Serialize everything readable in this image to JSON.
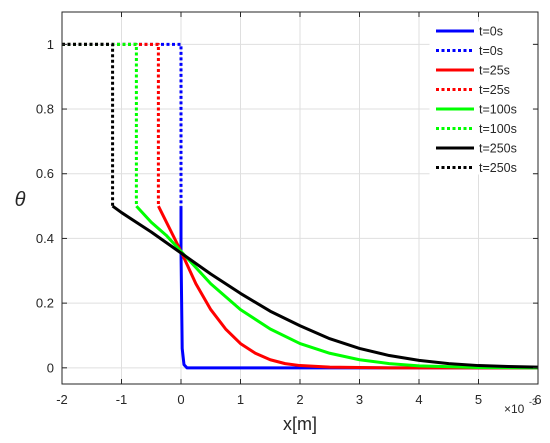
{
  "chart_data": {
    "type": "line",
    "xlabel": "x[m]",
    "ylabel": "θ",
    "x_exponent_label": "×10",
    "x_exponent_power": "-3",
    "xlim": [
      -2,
      6
    ],
    "ylim": [
      -0.05,
      1.1
    ],
    "x_unit_scale": 0.001,
    "xticks": [
      -2,
      -1,
      0,
      1,
      2,
      3,
      4,
      5,
      6
    ],
    "yticks": [
      0,
      0.2,
      0.4,
      0.6,
      0.8,
      1
    ],
    "grid": true,
    "legend_position": "top-right",
    "series": [
      {
        "name": "t=0s",
        "color": "#0000ff",
        "style": "solid",
        "x": [
          0,
          0,
          0.02,
          0.05,
          0.1,
          1,
          2,
          3,
          4,
          5,
          6
        ],
        "y": [
          0.5,
          0.36,
          0.06,
          0.01,
          0,
          0,
          0,
          0,
          0,
          0,
          0
        ]
      },
      {
        "name": "t=0s",
        "color": "#0000ff",
        "style": "dotted",
        "x": [
          -2,
          0,
          0
        ],
        "y": [
          1,
          1,
          0.5
        ]
      },
      {
        "name": "t=25s",
        "color": "#ff0000",
        "style": "solid",
        "x": [
          -0.38,
          0,
          0.25,
          0.5,
          0.75,
          1,
          1.25,
          1.5,
          1.75,
          2,
          2.5,
          3,
          3.5,
          4,
          5,
          6
        ],
        "y": [
          0.5,
          0.36,
          0.26,
          0.18,
          0.12,
          0.075,
          0.045,
          0.025,
          0.013,
          0.007,
          0.002,
          0.001,
          0,
          0,
          0,
          0
        ]
      },
      {
        "name": "t=25s",
        "color": "#ff0000",
        "style": "dotted",
        "x": [
          -2,
          -0.38,
          -0.38
        ],
        "y": [
          1,
          1,
          0.5
        ]
      },
      {
        "name": "t=100s",
        "color": "#00ff00",
        "style": "solid",
        "x": [
          -0.75,
          -0.5,
          -0.25,
          0,
          0.5,
          1,
          1.5,
          2,
          2.5,
          3,
          3.5,
          4,
          5,
          6
        ],
        "y": [
          0.5,
          0.45,
          0.41,
          0.36,
          0.26,
          0.18,
          0.12,
          0.075,
          0.045,
          0.025,
          0.013,
          0.006,
          0.001,
          0
        ]
      },
      {
        "name": "t=100s",
        "color": "#00ff00",
        "style": "dotted",
        "x": [
          -2,
          -0.75,
          -0.75
        ],
        "y": [
          1,
          1,
          0.5
        ]
      },
      {
        "name": "t=250s",
        "color": "#000000",
        "style": "solid",
        "x": [
          -1.15,
          -1,
          -0.5,
          0,
          0.5,
          1,
          1.5,
          2,
          2.5,
          3,
          3.5,
          4,
          4.5,
          5,
          5.5,
          6
        ],
        "y": [
          0.5,
          0.48,
          0.42,
          0.355,
          0.29,
          0.23,
          0.175,
          0.13,
          0.09,
          0.06,
          0.038,
          0.023,
          0.013,
          0.007,
          0.004,
          0.002
        ]
      },
      {
        "name": "t=250s",
        "color": "#000000",
        "style": "dotted",
        "x": [
          -2,
          -1.15,
          -1.15
        ],
        "y": [
          1,
          1,
          0.5
        ]
      }
    ]
  }
}
